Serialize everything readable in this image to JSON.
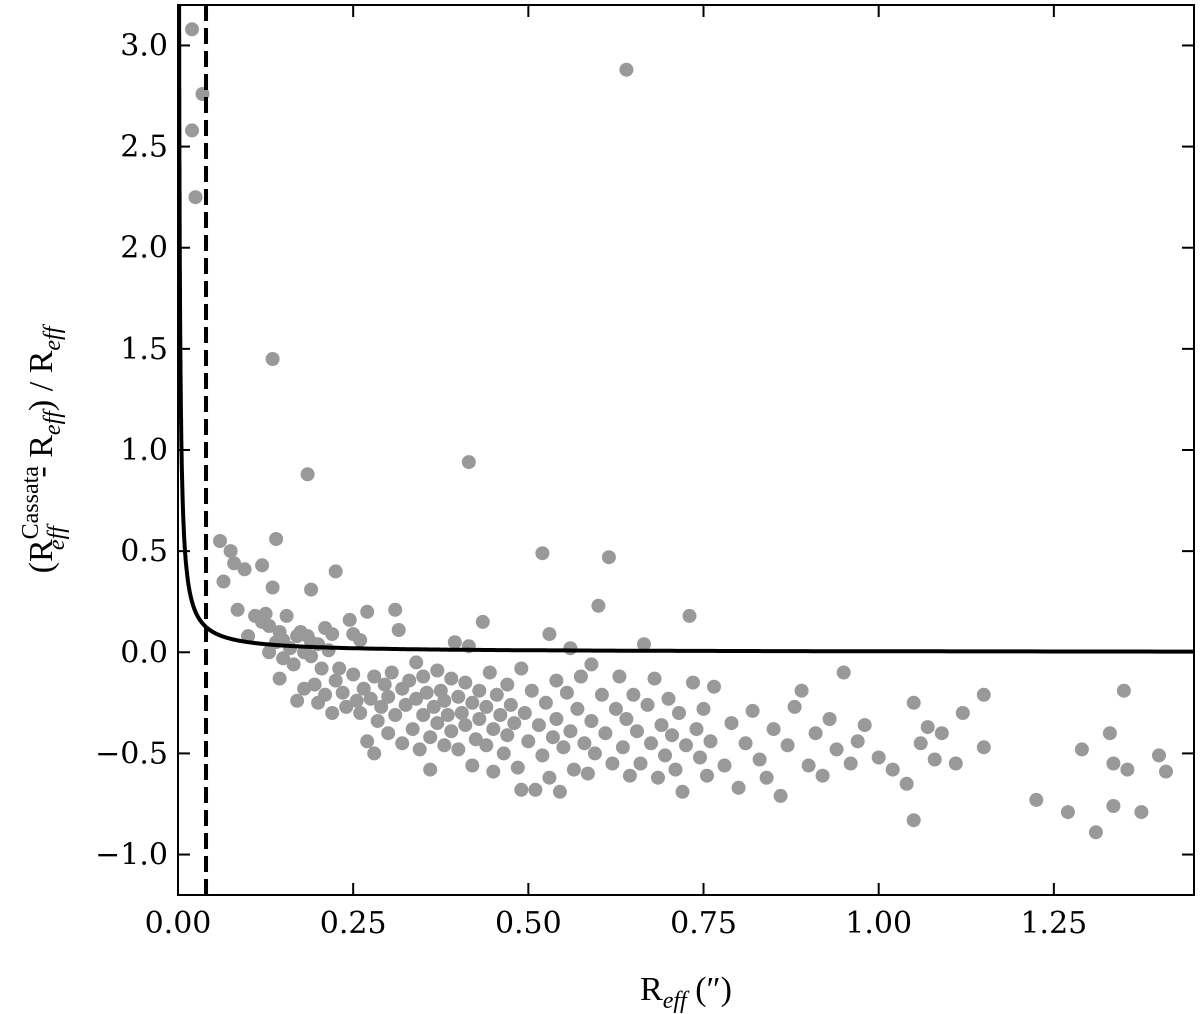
{
  "chart_data": {
    "type": "scatter",
    "title": "",
    "xlabel": "R_eff (″)",
    "ylabel": "(R_eff^Cassata - R_eff) / R_eff",
    "xlim": [
      0.0,
      1.45
    ],
    "ylim": [
      -1.2,
      3.2
    ],
    "grid": false,
    "legend": "none",
    "x_ticks": [
      0.0,
      0.25,
      0.5,
      0.75,
      1.0,
      1.25
    ],
    "x_tick_labels": [
      "0.00",
      "0.25",
      "0.50",
      "0.75",
      "1.00",
      "1.25"
    ],
    "y_ticks": [
      -1.0,
      -0.5,
      0.0,
      0.5,
      1.0,
      1.5,
      2.0,
      2.5,
      3.0
    ],
    "y_tick_labels": [
      "−1.0",
      "−0.5",
      "0.0",
      "0.5",
      "1.0",
      "1.5",
      "2.0",
      "2.5",
      "3.0"
    ],
    "colors": {
      "points": "#999999",
      "curve": "#000000",
      "vline": "#000000"
    },
    "vertical_line": {
      "x": 0.04,
      "style": "dashed"
    },
    "curve": {
      "relation": "y = 0.005 / x",
      "style": "solid"
    },
    "points": [
      [
        0.02,
        3.08
      ],
      [
        0.02,
        2.58
      ],
      [
        0.025,
        2.25
      ],
      [
        0.035,
        2.76
      ],
      [
        0.64,
        2.88
      ],
      [
        0.135,
        1.45
      ],
      [
        0.185,
        0.88
      ],
      [
        0.415,
        0.94
      ],
      [
        0.06,
        0.55
      ],
      [
        0.075,
        0.5
      ],
      [
        0.08,
        0.44
      ],
      [
        0.065,
        0.35
      ],
      [
        0.085,
        0.21
      ],
      [
        0.095,
        0.41
      ],
      [
        0.12,
        0.43
      ],
      [
        0.14,
        0.56
      ],
      [
        0.135,
        0.32
      ],
      [
        0.19,
        0.31
      ],
      [
        0.225,
        0.4
      ],
      [
        0.52,
        0.49
      ],
      [
        0.615,
        0.47
      ],
      [
        0.1,
        0.08
      ],
      [
        0.11,
        0.18
      ],
      [
        0.12,
        0.15
      ],
      [
        0.125,
        0.19
      ],
      [
        0.13,
        0.13
      ],
      [
        0.13,
        0.0
      ],
      [
        0.14,
        0.05
      ],
      [
        0.145,
        0.1
      ],
      [
        0.15,
        0.06
      ],
      [
        0.15,
        -0.03
      ],
      [
        0.155,
        0.18
      ],
      [
        0.16,
        0.02
      ],
      [
        0.165,
        -0.06
      ],
      [
        0.17,
        0.08
      ],
      [
        0.175,
        0.1
      ],
      [
        0.18,
        0.0
      ],
      [
        0.185,
        0.08
      ],
      [
        0.19,
        -0.02
      ],
      [
        0.19,
        0.05
      ],
      [
        0.2,
        0.04
      ],
      [
        0.205,
        -0.08
      ],
      [
        0.21,
        0.12
      ],
      [
        0.215,
        0.01
      ],
      [
        0.22,
        0.09
      ],
      [
        0.145,
        -0.13
      ],
      [
        0.17,
        -0.24
      ],
      [
        0.18,
        -0.18
      ],
      [
        0.195,
        -0.16
      ],
      [
        0.2,
        -0.25
      ],
      [
        0.21,
        -0.21
      ],
      [
        0.22,
        -0.3
      ],
      [
        0.225,
        -0.14
      ],
      [
        0.23,
        -0.08
      ],
      [
        0.235,
        -0.2
      ],
      [
        0.24,
        -0.27
      ],
      [
        0.245,
        0.16
      ],
      [
        0.25,
        0.09
      ],
      [
        0.25,
        -0.11
      ],
      [
        0.255,
        -0.24
      ],
      [
        0.26,
        0.06
      ],
      [
        0.26,
        -0.3
      ],
      [
        0.265,
        -0.18
      ],
      [
        0.27,
        0.2
      ],
      [
        0.27,
        -0.44
      ],
      [
        0.275,
        -0.23
      ],
      [
        0.28,
        -0.12
      ],
      [
        0.28,
        -0.5
      ],
      [
        0.285,
        -0.34
      ],
      [
        0.29,
        -0.27
      ],
      [
        0.295,
        -0.16
      ],
      [
        0.3,
        -0.4
      ],
      [
        0.3,
        -0.22
      ],
      [
        0.305,
        -0.1
      ],
      [
        0.31,
        0.21
      ],
      [
        0.31,
        -0.31
      ],
      [
        0.315,
        0.11
      ],
      [
        0.32,
        -0.45
      ],
      [
        0.32,
        -0.18
      ],
      [
        0.325,
        -0.26
      ],
      [
        0.33,
        -0.14
      ],
      [
        0.335,
        -0.38
      ],
      [
        0.34,
        -0.05
      ],
      [
        0.34,
        -0.23
      ],
      [
        0.345,
        -0.48
      ],
      [
        0.35,
        -0.31
      ],
      [
        0.35,
        -0.12
      ],
      [
        0.355,
        -0.2
      ],
      [
        0.36,
        -0.42
      ],
      [
        0.36,
        -0.58
      ],
      [
        0.365,
        -0.27
      ],
      [
        0.37,
        -0.09
      ],
      [
        0.37,
        -0.35
      ],
      [
        0.375,
        -0.19
      ],
      [
        0.38,
        -0.46
      ],
      [
        0.38,
        -0.24
      ],
      [
        0.385,
        -0.31
      ],
      [
        0.39,
        -0.13
      ],
      [
        0.39,
        -0.39
      ],
      [
        0.395,
        0.05
      ],
      [
        0.4,
        -0.22
      ],
      [
        0.4,
        -0.48
      ],
      [
        0.405,
        -0.3
      ],
      [
        0.41,
        -0.15
      ],
      [
        0.41,
        -0.36
      ],
      [
        0.415,
        0.03
      ],
      [
        0.42,
        -0.25
      ],
      [
        0.42,
        -0.56
      ],
      [
        0.425,
        -0.43
      ],
      [
        0.43,
        -0.19
      ],
      [
        0.43,
        -0.33
      ],
      [
        0.435,
        0.15
      ],
      [
        0.44,
        -0.46
      ],
      [
        0.44,
        -0.27
      ],
      [
        0.445,
        -0.1
      ],
      [
        0.45,
        -0.38
      ],
      [
        0.45,
        -0.59
      ],
      [
        0.455,
        -0.21
      ],
      [
        0.46,
        -0.31
      ],
      [
        0.465,
        -0.5
      ],
      [
        0.47,
        -0.16
      ],
      [
        0.47,
        -0.41
      ],
      [
        0.475,
        -0.26
      ],
      [
        0.48,
        -0.35
      ],
      [
        0.485,
        -0.57
      ],
      [
        0.49,
        -0.08
      ],
      [
        0.49,
        -0.68
      ],
      [
        0.495,
        -0.3
      ],
      [
        0.5,
        -0.44
      ],
      [
        0.505,
        -0.19
      ],
      [
        0.51,
        -0.68
      ],
      [
        0.515,
        -0.36
      ],
      [
        0.52,
        -0.51
      ],
      [
        0.525,
        -0.25
      ],
      [
        0.53,
        0.09
      ],
      [
        0.53,
        -0.62
      ],
      [
        0.535,
        -0.42
      ],
      [
        0.54,
        -0.14
      ],
      [
        0.54,
        -0.33
      ],
      [
        0.545,
        -0.69
      ],
      [
        0.55,
        -0.47
      ],
      [
        0.555,
        -0.2
      ],
      [
        0.56,
        0.02
      ],
      [
        0.56,
        -0.39
      ],
      [
        0.565,
        -0.58
      ],
      [
        0.57,
        -0.28
      ],
      [
        0.575,
        -0.12
      ],
      [
        0.58,
        -0.45
      ],
      [
        0.585,
        -0.6
      ],
      [
        0.59,
        -0.06
      ],
      [
        0.59,
        -0.34
      ],
      [
        0.595,
        -0.5
      ],
      [
        0.6,
        0.23
      ],
      [
        0.605,
        -0.21
      ],
      [
        0.61,
        -0.4
      ],
      [
        0.62,
        -0.55
      ],
      [
        0.625,
        -0.28
      ],
      [
        0.63,
        -0.12
      ],
      [
        0.635,
        -0.47
      ],
      [
        0.64,
        -0.33
      ],
      [
        0.645,
        -0.61
      ],
      [
        0.65,
        -0.21
      ],
      [
        0.655,
        -0.39
      ],
      [
        0.66,
        -0.55
      ],
      [
        0.665,
        0.04
      ],
      [
        0.67,
        -0.26
      ],
      [
        0.675,
        -0.45
      ],
      [
        0.68,
        -0.13
      ],
      [
        0.685,
        -0.62
      ],
      [
        0.69,
        -0.36
      ],
      [
        0.695,
        -0.51
      ],
      [
        0.7,
        -0.23
      ],
      [
        0.705,
        -0.41
      ],
      [
        0.71,
        -0.58
      ],
      [
        0.715,
        -0.3
      ],
      [
        0.72,
        -0.69
      ],
      [
        0.725,
        -0.46
      ],
      [
        0.73,
        0.18
      ],
      [
        0.735,
        -0.15
      ],
      [
        0.74,
        -0.38
      ],
      [
        0.745,
        -0.52
      ],
      [
        0.75,
        -0.28
      ],
      [
        0.755,
        -0.61
      ],
      [
        0.76,
        -0.44
      ],
      [
        0.765,
        -0.17
      ],
      [
        0.78,
        -0.56
      ],
      [
        0.79,
        -0.35
      ],
      [
        0.8,
        -0.67
      ],
      [
        0.81,
        -0.45
      ],
      [
        0.82,
        -0.29
      ],
      [
        0.83,
        -0.53
      ],
      [
        0.84,
        -0.62
      ],
      [
        0.85,
        -0.38
      ],
      [
        0.86,
        -0.71
      ],
      [
        0.87,
        -0.46
      ],
      [
        0.88,
        -0.27
      ],
      [
        0.89,
        -0.19
      ],
      [
        0.9,
        -0.56
      ],
      [
        0.91,
        -0.4
      ],
      [
        0.92,
        -0.61
      ],
      [
        0.93,
        -0.33
      ],
      [
        0.94,
        -0.48
      ],
      [
        0.95,
        -0.1
      ],
      [
        0.96,
        -0.55
      ],
      [
        0.97,
        -0.44
      ],
      [
        0.98,
        -0.36
      ],
      [
        1.0,
        -0.52
      ],
      [
        1.02,
        -0.58
      ],
      [
        1.04,
        -0.65
      ],
      [
        1.05,
        -0.25
      ],
      [
        1.05,
        -0.83
      ],
      [
        1.06,
        -0.45
      ],
      [
        1.07,
        -0.37
      ],
      [
        1.08,
        -0.53
      ],
      [
        1.09,
        -0.4
      ],
      [
        1.11,
        -0.55
      ],
      [
        1.12,
        -0.3
      ],
      [
        1.15,
        -0.21
      ],
      [
        1.15,
        -0.47
      ],
      [
        1.225,
        -0.73
      ],
      [
        1.27,
        -0.79
      ],
      [
        1.29,
        -0.48
      ],
      [
        1.31,
        -0.89
      ],
      [
        1.33,
        -0.4
      ],
      [
        1.335,
        -0.55
      ],
      [
        1.335,
        -0.76
      ],
      [
        1.35,
        -0.19
      ],
      [
        1.355,
        -0.58
      ],
      [
        1.375,
        -0.79
      ],
      [
        1.4,
        -0.51
      ],
      [
        1.41,
        -0.59
      ]
    ]
  }
}
